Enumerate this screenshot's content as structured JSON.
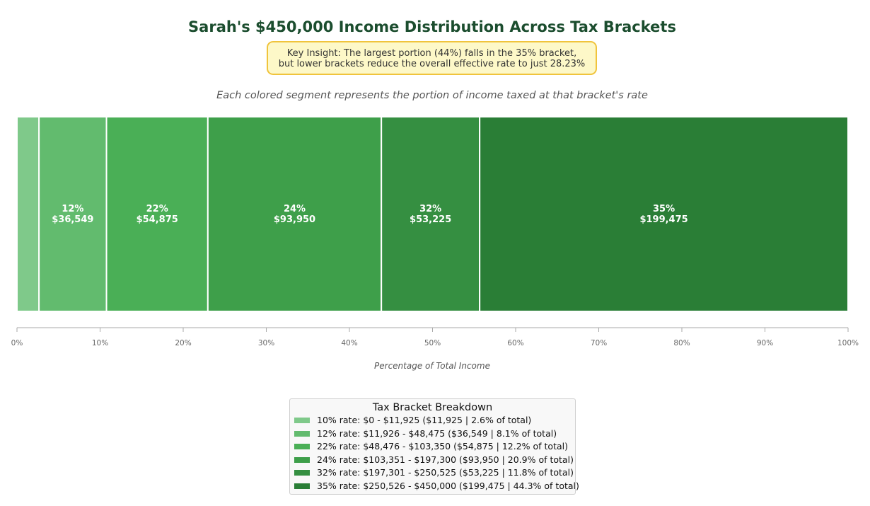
{
  "title": "Sarah's $450,000 Income Distribution Across Tax Brackets",
  "insight": {
    "line1": "Key Insight: The largest portion (44%) falls in the 35% bracket,",
    "line2": "but lower brackets reduce the overall effective rate to just 28.23%"
  },
  "subtitle": "Each colored segment represents the portion of income taxed at that bracket's rate",
  "chart_data": {
    "type": "bar",
    "orientation": "horizontal-stacked",
    "title": "Sarah's $450,000 Income Distribution Across Tax Brackets",
    "xlabel": "Percentage of Total Income",
    "ylabel": "",
    "xlim": [
      0,
      100
    ],
    "grid": false,
    "legend_position": "bottom-center",
    "legend_title": "Tax Bracket Breakdown",
    "x_ticks": [
      "0%",
      "10%",
      "20%",
      "30%",
      "40%",
      "50%",
      "60%",
      "70%",
      "80%",
      "90%",
      "100%"
    ],
    "series": [
      {
        "rate": "10%",
        "amount": "$11,925",
        "value": 11925,
        "percent": 2.6,
        "show_label": false,
        "color": "#7fc98a",
        "legend": "10% rate: $0 - $11,925 ($11,925 | 2.6% of total)"
      },
      {
        "rate": "12%",
        "amount": "$36,549",
        "value": 36549,
        "percent": 8.1,
        "show_label": true,
        "color": "#62bb6e",
        "legend": "12% rate: $11,926 - $48,475 ($36,549 | 8.1% of total)"
      },
      {
        "rate": "22%",
        "amount": "$54,875",
        "value": 54875,
        "percent": 12.2,
        "show_label": true,
        "color": "#4aaf56",
        "legend": "22% rate: $48,476 - $103,350 ($54,875 | 12.2% of total)"
      },
      {
        "rate": "24%",
        "amount": "$93,950",
        "value": 93950,
        "percent": 20.9,
        "show_label": true,
        "color": "#3e9f4a",
        "legend": "24% rate: $103,351 - $197,300 ($93,950 | 20.9% of total)"
      },
      {
        "rate": "32%",
        "amount": "$53,225",
        "value": 53225,
        "percent": 11.8,
        "show_label": true,
        "color": "#358f41",
        "legend": "32% rate: $197,301 - $250,525 ($53,225 | 11.8% of total)"
      },
      {
        "rate": "35%",
        "amount": "$199,475",
        "value": 199475,
        "percent": 44.3,
        "show_label": true,
        "color": "#2a7e36",
        "legend": "35% rate: $250,526 - $450,000 ($199,475 | 44.3% of total)"
      }
    ]
  }
}
